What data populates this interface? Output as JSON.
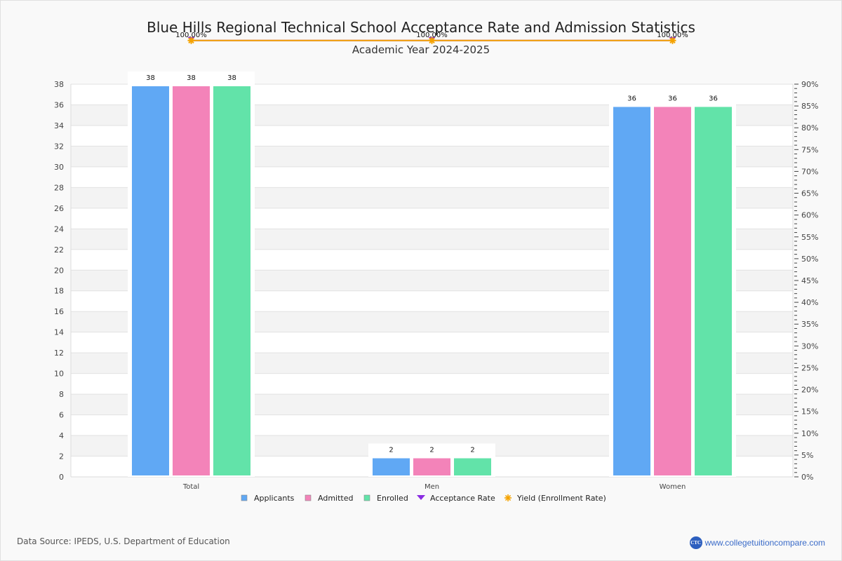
{
  "chart_data": {
    "type": "bar",
    "title": "Blue Hills Regional Technical School Acceptance Rate and Admission Statistics",
    "subtitle": "Academic Year 2024-2025",
    "categories": [
      "Total",
      "Men",
      "Women"
    ],
    "series": [
      {
        "name": "Applicants",
        "values": [
          38,
          2,
          36
        ],
        "color": "#60a8f4"
      },
      {
        "name": "Admitted",
        "values": [
          38,
          2,
          36
        ],
        "color": "#f383b9"
      },
      {
        "name": "Enrolled",
        "values": [
          38,
          2,
          36
        ],
        "color": "#62e3a9"
      }
    ],
    "rate_series": [
      {
        "name": "Acceptance Rate",
        "values": [
          100,
          100,
          100
        ],
        "color": "#8a2be2",
        "marker": "triangle-down"
      },
      {
        "name": "Yield (Enrollment Rate)",
        "values": [
          100,
          100,
          100
        ],
        "color": "#f5a300",
        "marker": "star"
      }
    ],
    "rate_labels": [
      "100.00%",
      "100.00%",
      "100.00%"
    ],
    "ylim": [
      0,
      38
    ],
    "yticks": [
      0,
      2,
      4,
      6,
      8,
      10,
      12,
      14,
      16,
      18,
      20,
      22,
      24,
      26,
      28,
      30,
      32,
      34,
      36,
      38
    ],
    "y2lim": [
      0,
      90
    ],
    "y2ticks": [
      "0%",
      "5%",
      "10%",
      "15%",
      "20%",
      "25%",
      "30%",
      "35%",
      "40%",
      "45%",
      "50%",
      "55%",
      "60%",
      "65%",
      "70%",
      "75%",
      "80%",
      "85%",
      "90%"
    ],
    "xlabel": "",
    "ylabel": "",
    "grid": true,
    "legend_position": "bottom"
  },
  "footer": {
    "source": "Data Source: IPEDS, U.S. Department of Education",
    "site": "www.collegetuitioncompare.com",
    "logo_text": "CTC"
  }
}
